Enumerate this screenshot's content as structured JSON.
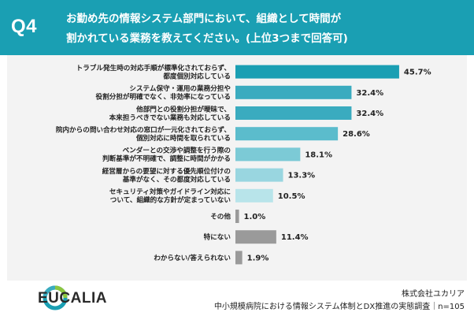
{
  "header": {
    "q_label": "Q4",
    "question_line1": "お勤め先の情報システム部門において、組織として時間が",
    "question_line2": "割かれている業務を教えてください。(上位3つまで回答可)"
  },
  "chart_data": {
    "type": "bar",
    "orientation": "horizontal",
    "xlabel": "",
    "ylabel": "",
    "xlim": [
      0,
      50
    ],
    "grid": false,
    "categories": [
      [
        "トラブル発生時の対応手順が標準化されておらず、",
        "都度個別対応している"
      ],
      [
        "システム保守・運用の業務分担や",
        "役割分担が明確でなく、非効率になっている"
      ],
      [
        "他部門との役割分担が曖昧で、",
        "本来担うべきでない業務も対応している"
      ],
      [
        "院内からの問い合わせ対応の窓口が一元化されておらず、",
        "個別対応に時間を取られている"
      ],
      [
        "ベンダーとの交渉や調整を行う際の",
        "判断基準が不明確で、調整に時間がかかる"
      ],
      [
        "経営層からの要望に対する優先順位付けの",
        "基準がなく、その都度対応している"
      ],
      [
        "セキュリティ対策やガイドライン対応に",
        "ついて、組織的な方針が定まっていない"
      ],
      [
        "その他"
      ],
      [
        "特にない"
      ],
      [
        "わからない/答えられない"
      ]
    ],
    "values": [
      45.7,
      32.4,
      32.4,
      28.6,
      18.1,
      13.3,
      10.5,
      1.0,
      11.4,
      1.9
    ],
    "value_labels": [
      "45.7%",
      "32.4%",
      "32.4%",
      "28.6%",
      "18.1%",
      "13.3%",
      "10.5%",
      "1.0%",
      "11.4%",
      "1.9%"
    ],
    "colors": [
      "#1a9fb3",
      "#3aabbf",
      "#3aabbf",
      "#5bbccc",
      "#7ccad6",
      "#99d6e0",
      "#b8e4ea",
      "#9a9a9a",
      "#9a9a9a",
      "#9a9a9a"
    ]
  },
  "footer": {
    "logo_text": "EUCALIA",
    "company": "株式会社ユカリア",
    "source": "中小規模病院における情報システム体制とDX推進の実態調査｜n=105"
  }
}
